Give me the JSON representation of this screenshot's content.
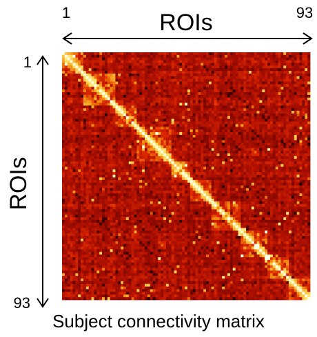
{
  "chart_data": {
    "type": "heatmap",
    "title": "Subject connectivity matrix",
    "xlabel": "ROIs",
    "ylabel": "ROIs",
    "x_range": [
      1,
      93
    ],
    "y_range": [
      1,
      93
    ],
    "x_start_label": "1",
    "x_end_label": "93",
    "y_start_label": "1",
    "y_end_label": "93",
    "size": 93,
    "colormap": "hot",
    "colors": {
      "dark": "#1a0000",
      "red": "#b01000",
      "bright_red": "#e02a00",
      "orange": "#f08a10",
      "yellow": "#ffe060",
      "white": "#ffffe8"
    }
  }
}
